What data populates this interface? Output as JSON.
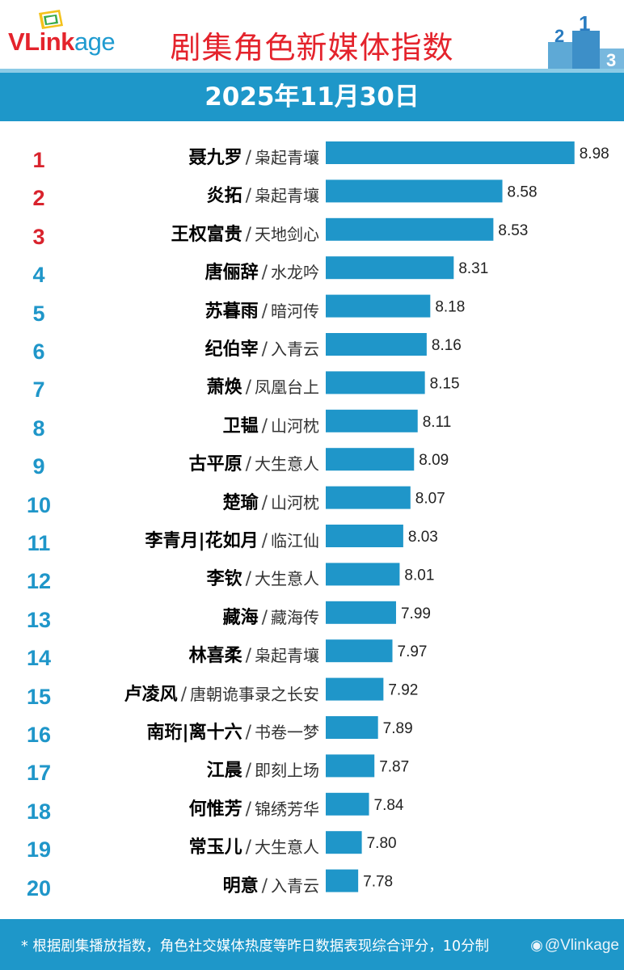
{
  "header": {
    "logo_vlink": "VLink",
    "logo_age": "age",
    "title": "剧集角色新媒体指数",
    "date": "2025年11月30日"
  },
  "colors": {
    "accent": "#1e97c9",
    "bar": "#1f96c9",
    "rank_top3": "#d9232d",
    "rank_rest": "#1f96c9",
    "title": "#e4232c"
  },
  "footer": {
    "note": "* 根据剧集播放指数，角色社交媒体热度等昨日数据表现综合评分，10分制",
    "watermark": "@Vlinkage"
  },
  "chart_data": {
    "type": "bar",
    "orientation": "horizontal",
    "title": "剧集角色新媒体指数",
    "subtitle": "2025年11月30日",
    "xlabel": "",
    "ylabel": "",
    "grid": false,
    "legend": "none",
    "rows": [
      {
        "rank": "1",
        "character": "聂九罗",
        "drama": "枭起青壤",
        "value": 8.98,
        "value_label": "8.98"
      },
      {
        "rank": "2",
        "character": "炎拓",
        "drama": "枭起青壤",
        "value": 8.58,
        "value_label": "8.58"
      },
      {
        "rank": "3",
        "character": "王权富贵",
        "drama": "天地剑心",
        "value": 8.53,
        "value_label": "8.53"
      },
      {
        "rank": "4",
        "character": "唐俪辞",
        "drama": "水龙吟",
        "value": 8.31,
        "value_label": "8.31"
      },
      {
        "rank": "5",
        "character": "苏暮雨",
        "drama": "暗河传",
        "value": 8.18,
        "value_label": "8.18"
      },
      {
        "rank": "6",
        "character": "纪伯宰",
        "drama": "入青云",
        "value": 8.16,
        "value_label": "8.16"
      },
      {
        "rank": "7",
        "character": "萧焕",
        "drama": "凤凰台上",
        "value": 8.15,
        "value_label": "8.15"
      },
      {
        "rank": "8",
        "character": "卫韫",
        "drama": "山河枕",
        "value": 8.11,
        "value_label": "8.11"
      },
      {
        "rank": "9",
        "character": "古平原",
        "drama": "大生意人",
        "value": 8.09,
        "value_label": "8.09"
      },
      {
        "rank": "10",
        "character": "楚瑜",
        "drama": "山河枕",
        "value": 8.07,
        "value_label": "8.07"
      },
      {
        "rank": "11",
        "character": "李青月|花如月",
        "drama": "临江仙",
        "value": 8.03,
        "value_label": "8.03"
      },
      {
        "rank": "12",
        "character": "李钦",
        "drama": "大生意人",
        "value": 8.01,
        "value_label": "8.01"
      },
      {
        "rank": "13",
        "character": "藏海",
        "drama": "藏海传",
        "value": 7.99,
        "value_label": "7.99"
      },
      {
        "rank": "14",
        "character": "林喜柔",
        "drama": "枭起青壤",
        "value": 7.97,
        "value_label": "7.97"
      },
      {
        "rank": "15",
        "character": "卢凌风",
        "drama": "唐朝诡事录之长安",
        "value": 7.92,
        "value_label": "7.92"
      },
      {
        "rank": "16",
        "character": "南珩|离十六",
        "drama": "书卷一梦",
        "value": 7.89,
        "value_label": "7.89"
      },
      {
        "rank": "17",
        "character": "江晨",
        "drama": "即刻上场",
        "value": 7.87,
        "value_label": "7.87"
      },
      {
        "rank": "18",
        "character": "何惟芳",
        "drama": "锦绣芳华",
        "value": 7.84,
        "value_label": "7.84"
      },
      {
        "rank": "19",
        "character": "常玉儿",
        "drama": "大生意人",
        "value": 7.8,
        "value_label": "7.80"
      },
      {
        "rank": "20",
        "character": "明意",
        "drama": "入青云",
        "value": 7.78,
        "value_label": "7.78"
      }
    ]
  }
}
